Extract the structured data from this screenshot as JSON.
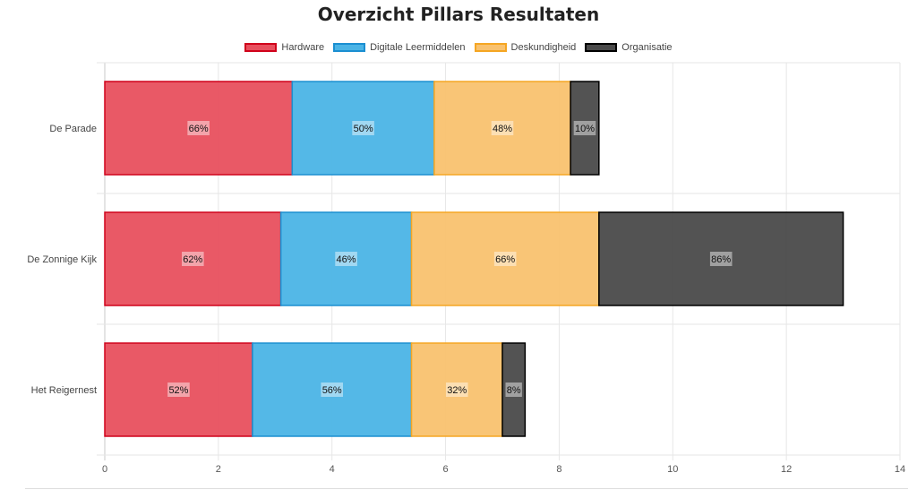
{
  "chart_data": {
    "type": "bar",
    "orientation": "horizontal",
    "stacked": true,
    "title": "Overzicht Pillars Resultaten",
    "categories": [
      "De Parade",
      "De Zonnige Kijk",
      "Het Reigernest"
    ],
    "series": [
      {
        "name": "Hardware",
        "values": [
          3.3,
          3.1,
          2.6
        ],
        "labels": [
          "66%",
          "62%",
          "52%"
        ],
        "fill": "#e8505e",
        "stroke": "#d0021b"
      },
      {
        "name": "Digitale Leermiddelen",
        "values": [
          2.5,
          2.3,
          2.8
        ],
        "labels": [
          "50%",
          "46%",
          "56%"
        ],
        "fill": "#4bb4e6",
        "stroke": "#1b8fd1"
      },
      {
        "name": "Deskundigheid",
        "values": [
          2.4,
          3.3,
          1.6
        ],
        "labels": [
          "48%",
          "66%",
          "32%"
        ],
        "fill": "#f9c26f",
        "stroke": "#f5a623"
      },
      {
        "name": "Organisatie",
        "values": [
          0.5,
          4.3,
          0.4
        ],
        "labels": [
          "10%",
          "86%",
          "8%"
        ],
        "fill": "#4a4a4a",
        "stroke": "#000000"
      }
    ],
    "xlim": [
      0,
      14
    ],
    "x_ticks": [
      0,
      2,
      4,
      6,
      8,
      10,
      12,
      14
    ],
    "xlabel": "",
    "ylabel": "",
    "grid": true,
    "legend_position": "top"
  }
}
